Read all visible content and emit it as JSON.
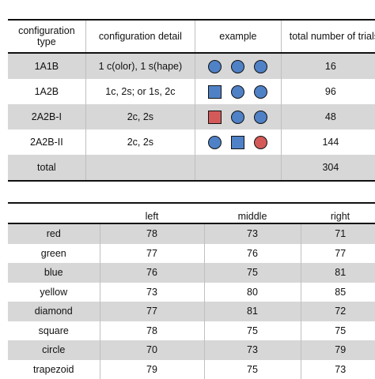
{
  "config_table": {
    "headers": [
      "configuration type",
      "configuration detail",
      "example",
      "total number of trials"
    ],
    "rows": [
      {
        "type": "1A1B",
        "detail": "1 c(olor), 1 s(hape)",
        "example": [
          {
            "shape": "circle",
            "color": "blue"
          },
          {
            "shape": "circle",
            "color": "blue"
          },
          {
            "shape": "circle",
            "color": "blue"
          }
        ],
        "total": "16"
      },
      {
        "type": "1A2B",
        "detail": "1c, 2s; or 1s, 2c",
        "example": [
          {
            "shape": "square",
            "color": "blue"
          },
          {
            "shape": "circle",
            "color": "blue"
          },
          {
            "shape": "circle",
            "color": "blue"
          }
        ],
        "total": "96"
      },
      {
        "type": "2A2B-I",
        "detail": "2c, 2s",
        "example": [
          {
            "shape": "square",
            "color": "red"
          },
          {
            "shape": "circle",
            "color": "blue"
          },
          {
            "shape": "circle",
            "color": "blue"
          }
        ],
        "total": "48"
      },
      {
        "type": "2A2B-II",
        "detail": "2c, 2s",
        "example": [
          {
            "shape": "circle",
            "color": "blue"
          },
          {
            "shape": "square",
            "color": "blue"
          },
          {
            "shape": "circle",
            "color": "red"
          }
        ],
        "total": "144"
      },
      {
        "type": "total",
        "detail": "",
        "example": [],
        "total": "304"
      }
    ]
  },
  "feature_table": {
    "headers": [
      "",
      "left",
      "middle",
      "right"
    ],
    "rows": [
      {
        "label": "red",
        "left": "78",
        "middle": "73",
        "right": "71"
      },
      {
        "label": "green",
        "left": "77",
        "middle": "76",
        "right": "77"
      },
      {
        "label": "blue",
        "left": "76",
        "middle": "75",
        "right": "81"
      },
      {
        "label": "yellow",
        "left": "73",
        "middle": "80",
        "right": "85"
      },
      {
        "label": "diamond",
        "left": "77",
        "middle": "81",
        "right": "72"
      },
      {
        "label": "square",
        "left": "78",
        "middle": "75",
        "right": "75"
      },
      {
        "label": "circle",
        "left": "70",
        "middle": "73",
        "right": "79"
      },
      {
        "label": "trapezoid",
        "left": "79",
        "middle": "75",
        "right": "73"
      }
    ]
  },
  "colors": {
    "blue_shape": "#4f81c6",
    "red_shape": "#d45a5a",
    "row_shade": "#d7d7d7"
  }
}
